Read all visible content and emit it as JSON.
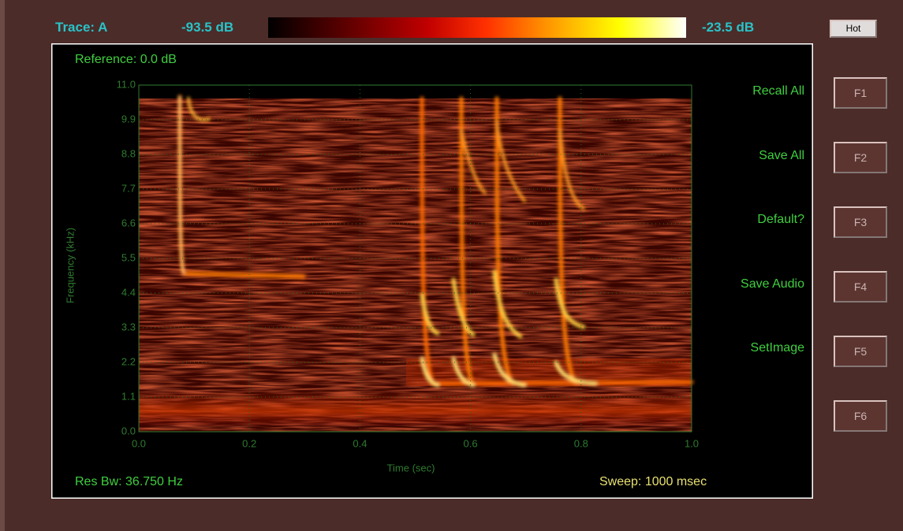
{
  "header": {
    "trace": "Trace: A",
    "min_level": "-93.5 dB",
    "max_level": "-23.5 dB",
    "palette_button": "Hot"
  },
  "reference": "Reference: 0.0 dB",
  "res_bw": "Res Bw: 36.750 Hz",
  "sweep": "Sweep: 1000 msec",
  "menu_labels": [
    "Recall All",
    "Save All",
    "Default?",
    "Save Audio",
    "SetImage"
  ],
  "softkeys": [
    "F1",
    "F2",
    "F3",
    "F4",
    "F5",
    "F6"
  ],
  "chart_data": {
    "type": "spectrogram",
    "xlabel": "Time (sec)",
    "ylabel": "Frequency (kHz)",
    "xlim": [
      0,
      1
    ],
    "xticks": [
      {
        "value": 0,
        "label": "0.0"
      },
      0.2,
      0.4,
      0.6,
      0.8,
      {
        "value": 1,
        "label": "1.0"
      }
    ],
    "ylim": [
      0,
      11
    ],
    "yticks": [
      {
        "value": 0,
        "label": "0.0"
      },
      1.1,
      2.2,
      3.3,
      4.4,
      5.5,
      6.6,
      7.7,
      8.8,
      9.9,
      {
        "value": 11,
        "label": "11.0"
      }
    ],
    "grid": true
  }
}
